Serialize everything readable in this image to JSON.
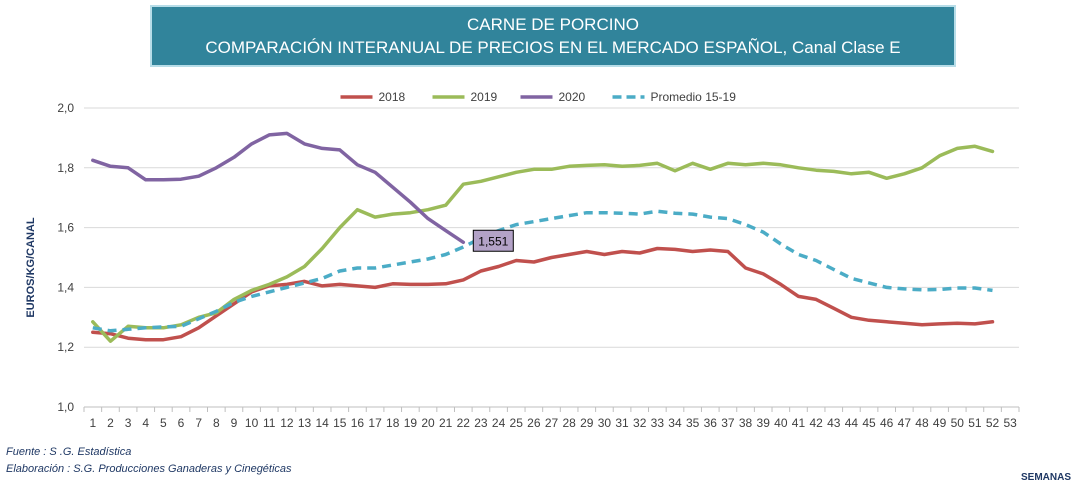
{
  "chart_data": {
    "type": "line",
    "title": "CARNE DE PORCINO",
    "subtitle": "COMPARACIÓN INTERANUAL DE PRECIOS EN EL MERCADO ESPAÑOL, Canal Clase E",
    "xlabel": "SEMANAS",
    "ylabel": "EUROS/KG/CANAL",
    "ylim": [
      1.0,
      2.0
    ],
    "yticks": [
      "1,0",
      "1,2",
      "1,4",
      "1,6",
      "1,8",
      "2,0"
    ],
    "x": [
      1,
      2,
      3,
      4,
      5,
      6,
      7,
      8,
      9,
      10,
      11,
      12,
      13,
      14,
      15,
      16,
      17,
      18,
      19,
      20,
      21,
      22,
      23,
      24,
      25,
      26,
      27,
      28,
      29,
      30,
      31,
      32,
      33,
      34,
      35,
      36,
      37,
      38,
      39,
      40,
      41,
      42,
      43,
      44,
      45,
      46,
      47,
      48,
      49,
      50,
      51,
      52,
      53
    ],
    "grid": true,
    "legend_position": "top-center",
    "series": [
      {
        "name": "2018",
        "color": "#c0504d",
        "dash": false,
        "values": [
          1.25,
          1.245,
          1.23,
          1.225,
          1.225,
          1.235,
          1.265,
          1.305,
          1.345,
          1.385,
          1.405,
          1.41,
          1.42,
          1.405,
          1.41,
          1.405,
          1.4,
          1.412,
          1.41,
          1.41,
          1.412,
          1.425,
          1.455,
          1.47,
          1.49,
          1.485,
          1.5,
          1.51,
          1.52,
          1.51,
          1.52,
          1.515,
          1.53,
          1.527,
          1.52,
          1.525,
          1.52,
          1.465,
          1.445,
          1.41,
          1.37,
          1.36,
          1.33,
          1.3,
          1.29,
          1.285,
          1.28,
          1.275,
          1.278,
          1.28,
          1.278,
          1.285,
          null
        ]
      },
      {
        "name": "2019",
        "color": "#9bbb59",
        "dash": false,
        "values": [
          1.285,
          1.22,
          1.27,
          1.265,
          1.265,
          1.275,
          1.3,
          1.315,
          1.36,
          1.39,
          1.41,
          1.435,
          1.47,
          1.53,
          1.6,
          1.66,
          1.635,
          1.645,
          1.65,
          1.66,
          1.675,
          1.745,
          1.755,
          1.77,
          1.785,
          1.795,
          1.795,
          1.805,
          1.808,
          1.81,
          1.805,
          1.808,
          1.815,
          1.79,
          1.815,
          1.795,
          1.815,
          1.81,
          1.815,
          1.81,
          1.8,
          1.792,
          1.788,
          1.78,
          1.785,
          1.765,
          1.78,
          1.8,
          1.84,
          1.865,
          1.872,
          1.855,
          null
        ]
      },
      {
        "name": "2020",
        "color": "#8064a2",
        "dash": false,
        "values": [
          1.825,
          1.805,
          1.8,
          1.76,
          1.76,
          1.762,
          1.772,
          1.8,
          1.835,
          1.88,
          1.91,
          1.915,
          1.88,
          1.865,
          1.86,
          1.81,
          1.785,
          1.735,
          1.685,
          1.63,
          1.59,
          1.551,
          null,
          null,
          null,
          null,
          null,
          null,
          null,
          null,
          null,
          null,
          null,
          null,
          null,
          null,
          null,
          null,
          null,
          null,
          null,
          null,
          null,
          null,
          null,
          null,
          null,
          null,
          null,
          null,
          null,
          null,
          null
        ]
      },
      {
        "name": "Promedio 15-19",
        "color": "#4bacc6",
        "dash": true,
        "values": [
          1.265,
          1.255,
          1.26,
          1.265,
          1.268,
          1.27,
          1.295,
          1.32,
          1.35,
          1.37,
          1.385,
          1.4,
          1.415,
          1.43,
          1.455,
          1.465,
          1.465,
          1.475,
          1.485,
          1.495,
          1.51,
          1.535,
          1.565,
          1.59,
          1.61,
          1.62,
          1.63,
          1.64,
          1.65,
          1.65,
          1.648,
          1.645,
          1.655,
          1.648,
          1.645,
          1.635,
          1.63,
          1.61,
          1.585,
          1.545,
          1.51,
          1.49,
          1.46,
          1.43,
          1.415,
          1.4,
          1.395,
          1.392,
          1.393,
          1.398,
          1.398,
          1.39,
          null
        ]
      }
    ],
    "annotation": {
      "label": "1,551",
      "series": "2020",
      "x": 22,
      "y": 1.551
    }
  },
  "footer": {
    "source": "Fuente :  S .G. Estadística",
    "elaboration": "Elaboración : S.G. Producciones Ganaderas y Cinegéticas"
  }
}
